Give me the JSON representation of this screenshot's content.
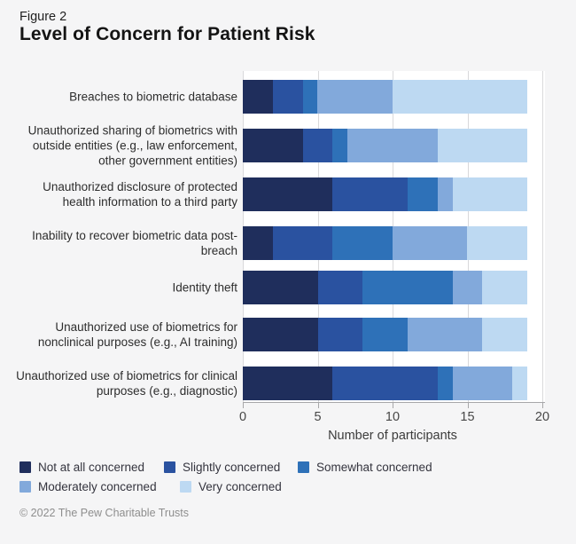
{
  "figure": {
    "label": "Figure 2",
    "title": "Level of Concern for Patient Risk"
  },
  "footer": {
    "copyright": "© 2022 The Pew Charitable Trusts"
  },
  "colors": {
    "page_bg": "#F5F5F6",
    "plot_bg": "#FFFFFF",
    "gridline": "#D9D9DB",
    "axis": "#A7A7A9"
  },
  "chart_data": {
    "type": "bar",
    "orientation": "horizontal-stacked",
    "title": "Level of Concern for Patient Risk",
    "xlabel": "Number of participants",
    "ylabel": "",
    "xlim": [
      0,
      20
    ],
    "xticks": [
      "0",
      "5",
      "10",
      "15",
      "20"
    ],
    "grid": true,
    "legend_position": "bottom",
    "categories": [
      "Breaches to biometric database",
      "Unauthorized sharing of biometrics with outside entities (e.g., law enforcement, other government entities)",
      "Unauthorized disclosure of protected health information to a third party",
      "Inability to recover biometric data post-breach",
      "Identity theft",
      "Unauthorized use of biometrics for nonclinical purposes (e.g., AI training)",
      "Unauthorized use of biometrics for clinical purposes (e.g., diagnostic)"
    ],
    "series": [
      {
        "name": "Not at all concerned",
        "color": "#1F2E5C",
        "values": [
          2,
          4,
          6,
          2,
          5,
          5,
          6
        ]
      },
      {
        "name": "Slightly concerned",
        "color": "#2A52A0",
        "values": [
          2,
          2,
          5,
          4,
          3,
          3,
          7
        ]
      },
      {
        "name": "Somewhat concerned",
        "color": "#2E71B8",
        "values": [
          1,
          1,
          2,
          4,
          6,
          3,
          1
        ]
      },
      {
        "name": "Moderately concerned",
        "color": "#82A9DB",
        "values": [
          5,
          6,
          1,
          5,
          2,
          5,
          4
        ]
      },
      {
        "name": "Very concerned",
        "color": "#BDD9F2",
        "values": [
          9,
          6,
          5,
          4,
          3,
          3,
          1
        ]
      }
    ],
    "totals": [
      19,
      19,
      19,
      19,
      19,
      19,
      19
    ]
  }
}
